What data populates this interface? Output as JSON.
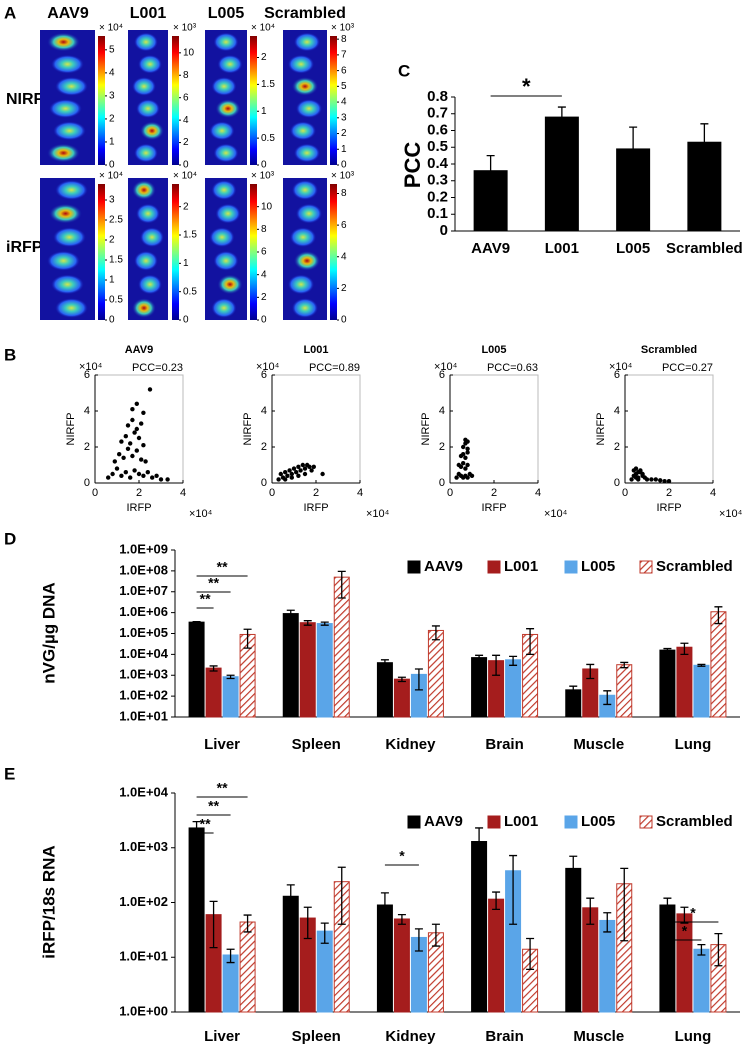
{
  "panel_labels": [
    "A",
    "B",
    "C",
    "D",
    "E"
  ],
  "panel_a": {
    "columns": [
      "AAV9",
      "L001",
      "L005",
      "Scrambled"
    ],
    "rows": [
      "NIRF",
      "iRFP"
    ]
  },
  "chart_data": [
    {
      "type": "colorbar",
      "ylim": [
        0,
        5.6
      ],
      "yticks": [
        0,
        1,
        2,
        3,
        4,
        5
      ],
      "multiplier": "× 10⁴"
    },
    {
      "type": "colorbar",
      "ylim": [
        0,
        11.5
      ],
      "yticks": [
        0,
        2,
        4,
        6,
        8,
        10
      ],
      "multiplier": "× 10³"
    },
    {
      "type": "colorbar",
      "ylim": [
        0,
        2.4
      ],
      "yticks": [
        0,
        0.5,
        1,
        1.5,
        2
      ],
      "multiplier": "× 10⁴"
    },
    {
      "type": "colorbar",
      "ylim": [
        0,
        8.2
      ],
      "yticks": [
        0,
        1,
        2,
        3,
        4,
        5,
        6,
        7,
        8
      ],
      "multiplier": "× 10³"
    },
    {
      "type": "colorbar",
      "ylim": [
        0,
        3.4
      ],
      "yticks": [
        0,
        0.5,
        1,
        1.5,
        2,
        2.5,
        3
      ],
      "multiplier": "× 10⁴"
    },
    {
      "type": "colorbar",
      "ylim": [
        0,
        2.4
      ],
      "yticks": [
        0,
        0.5,
        1,
        1.5,
        2
      ],
      "multiplier": "× 10⁴"
    },
    {
      "type": "colorbar",
      "ylim": [
        0,
        12
      ],
      "yticks": [
        0,
        2,
        4,
        6,
        8,
        10
      ],
      "multiplier": "× 10³"
    },
    {
      "type": "colorbar",
      "ylim": [
        0,
        8.6
      ],
      "yticks": [
        0,
        2,
        4,
        6,
        8
      ],
      "multiplier": "× 10³"
    },
    {
      "type": "scatter",
      "title": "AAV9",
      "annotation": "PCC=0.23",
      "xlabel": "IRFP",
      "ylabel": "NIRFP",
      "x_multiplier": "×10⁴",
      "y_multiplier": "×10⁴",
      "color": "#000000",
      "xlim": [
        0,
        4
      ],
      "ylim": [
        0,
        6
      ],
      "xticks": [
        0,
        2,
        4
      ],
      "yticks": [
        0,
        2,
        4,
        6
      ],
      "x": [
        0.6,
        0.8,
        1.0,
        1.2,
        1.4,
        1.6,
        1.8,
        2.0,
        2.2,
        2.4,
        2.6,
        2.8,
        3.0,
        3.3,
        0.9,
        1.1,
        1.3,
        1.5,
        1.7,
        1.9,
        2.1,
        2.3,
        1.2,
        1.4,
        1.6,
        1.8,
        2.0,
        2.2,
        1.5,
        1.7,
        1.9,
        2.1,
        1.7,
        1.9,
        2.2,
        2.5
      ],
      "y": [
        0.3,
        0.5,
        0.8,
        0.4,
        0.6,
        0.3,
        0.7,
        0.5,
        0.4,
        0.6,
        0.3,
        0.4,
        0.2,
        0.2,
        1.2,
        1.6,
        1.4,
        1.9,
        1.5,
        1.8,
        1.3,
        1.2,
        2.3,
        2.6,
        2.2,
        2.8,
        2.5,
        2.1,
        3.2,
        3.5,
        3.0,
        3.3,
        4.1,
        4.4,
        3.9,
        5.2
      ]
    },
    {
      "type": "scatter",
      "title": "L001",
      "annotation": "PCC=0.89",
      "xlabel": "IRFP",
      "ylabel": "NIRFP",
      "x_multiplier": "×10⁴",
      "y_multiplier": "×10⁴",
      "color": "#000000",
      "xlim": [
        0,
        4
      ],
      "ylim": [
        0,
        6
      ],
      "xticks": [
        0,
        2,
        4
      ],
      "yticks": [
        0,
        2,
        4,
        6
      ],
      "x": [
        0.3,
        0.5,
        0.7,
        0.9,
        1.1,
        1.3,
        1.5,
        1.7,
        1.9,
        0.4,
        0.6,
        0.8,
        1.0,
        1.2,
        1.4,
        1.6,
        1.8,
        0.6,
        0.9,
        1.2,
        1.5,
        2.3
      ],
      "y": [
        0.2,
        0.3,
        0.4,
        0.5,
        0.6,
        0.7,
        0.8,
        0.9,
        0.9,
        0.5,
        0.6,
        0.7,
        0.8,
        0.9,
        1.0,
        1.0,
        0.7,
        0.2,
        0.3,
        0.4,
        0.5,
        0.5
      ]
    },
    {
      "type": "scatter",
      "title": "L005",
      "annotation": "PCC=0.63",
      "xlabel": "IRFP",
      "ylabel": "NIRFP",
      "x_multiplier": "×10⁴",
      "y_multiplier": "×10⁴",
      "color": "#000000",
      "xlim": [
        0,
        4
      ],
      "ylim": [
        0,
        6
      ],
      "xticks": [
        0,
        2,
        4
      ],
      "yticks": [
        0,
        2,
        4,
        6
      ],
      "x": [
        0.3,
        0.4,
        0.5,
        0.6,
        0.7,
        0.8,
        0.9,
        1.0,
        0.4,
        0.5,
        0.6,
        0.7,
        0.8,
        0.5,
        0.6,
        0.7,
        0.8,
        0.6,
        0.7,
        0.8,
        0.7,
        0.8
      ],
      "y": [
        0.3,
        0.5,
        0.4,
        0.3,
        0.4,
        0.3,
        0.5,
        0.4,
        1.0,
        0.9,
        1.1,
        0.8,
        1.0,
        1.5,
        1.6,
        1.4,
        1.7,
        2.0,
        2.2,
        1.9,
        2.4,
        2.3
      ]
    },
    {
      "type": "scatter",
      "title": "Scrambled",
      "annotation": "PCC=0.27",
      "xlabel": "IRFP",
      "ylabel": "NIRFP",
      "x_multiplier": "×10⁴",
      "y_multiplier": "×10⁴",
      "color": "#000000",
      "xlim": [
        0,
        4
      ],
      "ylim": [
        0,
        6
      ],
      "xticks": [
        0,
        2,
        4
      ],
      "yticks": [
        0,
        2,
        4,
        6
      ],
      "x": [
        0.3,
        0.4,
        0.5,
        0.6,
        0.7,
        0.8,
        0.9,
        1.0,
        1.2,
        1.4,
        1.6,
        1.8,
        2.0,
        0.4,
        0.5,
        0.6,
        0.7,
        0.8,
        0.5,
        0.6
      ],
      "y": [
        0.2,
        0.4,
        0.5,
        0.3,
        0.6,
        0.4,
        0.3,
        0.2,
        0.2,
        0.2,
        0.15,
        0.1,
        0.1,
        0.7,
        0.8,
        0.6,
        0.7,
        0.5,
        0.3,
        0.2
      ]
    },
    {
      "type": "bar",
      "ylabel": "PCC",
      "categories": [
        "AAV9",
        "L001",
        "L005",
        "Scrambled"
      ],
      "values": [
        0.36,
        0.68,
        0.49,
        0.53
      ],
      "errors": [
        0.09,
        0.06,
        0.13,
        0.11
      ],
      "color": "#000000",
      "ylim": [
        0,
        0.8
      ],
      "yticks": [
        0,
        0.1,
        0.2,
        0.3,
        0.4,
        0.5,
        0.6,
        0.7,
        0.8
      ],
      "annotations": [
        "*"
      ]
    },
    {
      "type": "bar",
      "log_scale": true,
      "ylabel": "nVG/µg DNA",
      "legend": "top-right",
      "categories": [
        "Liver",
        "Spleen",
        "Kidney",
        "Brain",
        "Muscle",
        "Lung"
      ],
      "series": [
        {
          "name": "AAV9",
          "color": "#000000",
          "values": [
            350000,
            900000,
            4000,
            7000,
            200,
            16000
          ],
          "errors": [
            20000,
            400000,
            1500,
            2000,
            100,
            3000
          ]
        },
        {
          "name": "L001",
          "color": "#a51d1d",
          "values": [
            2200,
            330000,
            650,
            5000,
            2000,
            22000
          ],
          "errors": [
            600,
            80000,
            150,
            4000,
            1300,
            12000
          ]
        },
        {
          "name": "L005",
          "color": "#5aa5e8",
          "values": [
            850,
            300000,
            1100,
            5500,
            110,
            3000
          ],
          "errors": [
            150,
            50000,
            900,
            2500,
            70,
            300
          ]
        },
        {
          "name": "Scrambled",
          "color": "#c0392b",
          "pattern": "hatched",
          "values": [
            90000,
            50000000,
            140000,
            90000,
            3200,
            1100000
          ],
          "errors": [
            70000,
            45000000,
            90000,
            80000,
            900,
            800000
          ]
        }
      ],
      "ylim": [
        10,
        1000000000
      ],
      "yticks": [
        {
          "value": 10,
          "label": "1.0E+01"
        },
        {
          "value": 100,
          "label": "1.0E+02"
        },
        {
          "value": 1000,
          "label": "1.0E+03"
        },
        {
          "value": 10000,
          "label": "1.0E+04"
        },
        {
          "value": 100000,
          "label": "1.0E+05"
        },
        {
          "value": 1000000,
          "label": "1.0E+06"
        },
        {
          "value": 10000000,
          "label": "1.0E+07"
        },
        {
          "value": 100000000,
          "label": "1.0E+08"
        },
        {
          "value": 1000000000,
          "label": "1.0E+09"
        }
      ],
      "annotations": [
        "**",
        "**",
        "**"
      ]
    },
    {
      "type": "bar",
      "log_scale": true,
      "ylabel": "iRFP/18s RNA",
      "legend": "top-right",
      "categories": [
        "Liver",
        "Spleen",
        "Kidney",
        "Brain",
        "Muscle",
        "Lung"
      ],
      "series": [
        {
          "name": "AAV9",
          "color": "#000000",
          "values": [
            2300,
            130,
            90,
            1300,
            420,
            90
          ],
          "errors": [
            700,
            80,
            60,
            1000,
            280,
            30
          ]
        },
        {
          "name": "L001",
          "color": "#a51d1d",
          "values": [
            60,
            52,
            50,
            115,
            80,
            62
          ],
          "errors": [
            45,
            30,
            10,
            40,
            40,
            20
          ]
        },
        {
          "name": "L005",
          "color": "#5aa5e8",
          "values": [
            11,
            30,
            23,
            380,
            47,
            14
          ],
          "errors": [
            3,
            12,
            10,
            340,
            18,
            3
          ]
        },
        {
          "name": "Scrambled",
          "color": "#c0392b",
          "pattern": "hatched",
          "values": [
            44,
            240,
            28,
            14,
            220,
            17
          ],
          "errors": [
            15,
            200,
            12,
            8,
            200,
            10
          ]
        }
      ],
      "ylim": [
        1,
        10000
      ],
      "yticks": [
        {
          "value": 1,
          "label": "1.0E+00"
        },
        {
          "value": 10,
          "label": "1.0E+01"
        },
        {
          "value": 100,
          "label": "1.0E+02"
        },
        {
          "value": 1000,
          "label": "1.0E+03"
        },
        {
          "value": 10000,
          "label": "1.0E+04"
        }
      ],
      "annotations": [
        "**",
        "**",
        "**",
        "*",
        "*",
        "*"
      ]
    }
  ]
}
